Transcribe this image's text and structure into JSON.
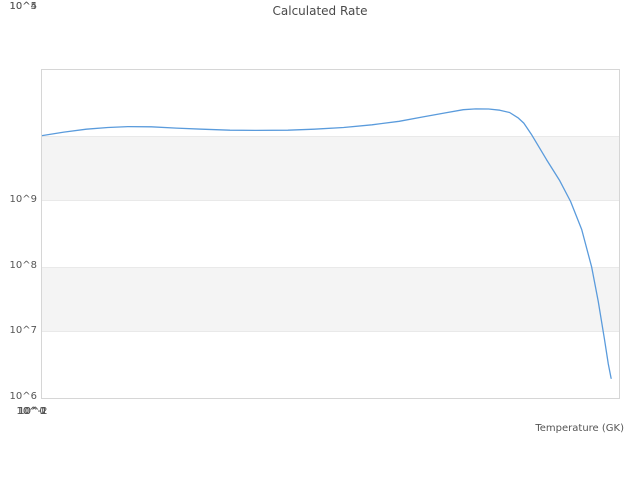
{
  "chart_data": {
    "type": "line",
    "title": "Calculated Rate",
    "xlabel": "Temperature (GK)",
    "ylabel": "",
    "x_scale": "log",
    "y_scale": "log",
    "xlim": [
      0.01,
      10
    ],
    "ylim": [
      10000.0,
      1000000000.0
    ],
    "x_ticks": [
      0.01,
      0.1,
      1,
      10
    ],
    "x_tick_labels": [
      "10^-2",
      "10^-1",
      "10^0",
      "10^1"
    ],
    "y_ticks": [
      1000000000.0,
      100000000.0,
      10000000.0,
      1000000.0,
      100000.0,
      10000.0
    ],
    "y_tick_labels": [
      "10^9",
      "10^8",
      "10^7",
      "10^6",
      "10^5",
      "10^4"
    ],
    "grid": false,
    "legend": false,
    "bands": [
      [
        10000000.0,
        100000000.0
      ],
      [
        100000.0,
        1000000.0
      ]
    ],
    "band_color": "#f4f4f4",
    "series": [
      {
        "name": "Calculated Rate",
        "color": "#5a9bdc",
        "x": [
          0.01,
          0.013,
          0.017,
          0.022,
          0.028,
          0.037,
          0.05,
          0.068,
          0.095,
          0.13,
          0.19,
          0.26,
          0.37,
          0.52,
          0.72,
          0.95,
          1.25,
          1.55,
          1.8,
          2.1,
          2.4,
          2.7,
          3.0,
          3.2,
          3.5,
          4.2,
          4.9,
          5.6,
          6.4,
          7.2,
          7.8,
          8.4,
          8.8,
          9.1
        ],
        "y": [
          100000000.0,
          113000000.0,
          125000000.0,
          133000000.0,
          137000000.0,
          136000000.0,
          130000000.0,
          125000000.0,
          121000000.0,
          120000000.0,
          121000000.0,
          125000000.0,
          133000000.0,
          146000000.0,
          165000000.0,
          192000000.0,
          222000000.0,
          248000000.0,
          255000000.0,
          254000000.0,
          244000000.0,
          225000000.0,
          185000000.0,
          155000000.0,
          105000000.0,
          43000000.0,
          21000000.0,
          9900000.0,
          3700000.0,
          1000000.0,
          300000.0,
          80000.0,
          33000.0,
          20000.0
        ]
      }
    ]
  }
}
